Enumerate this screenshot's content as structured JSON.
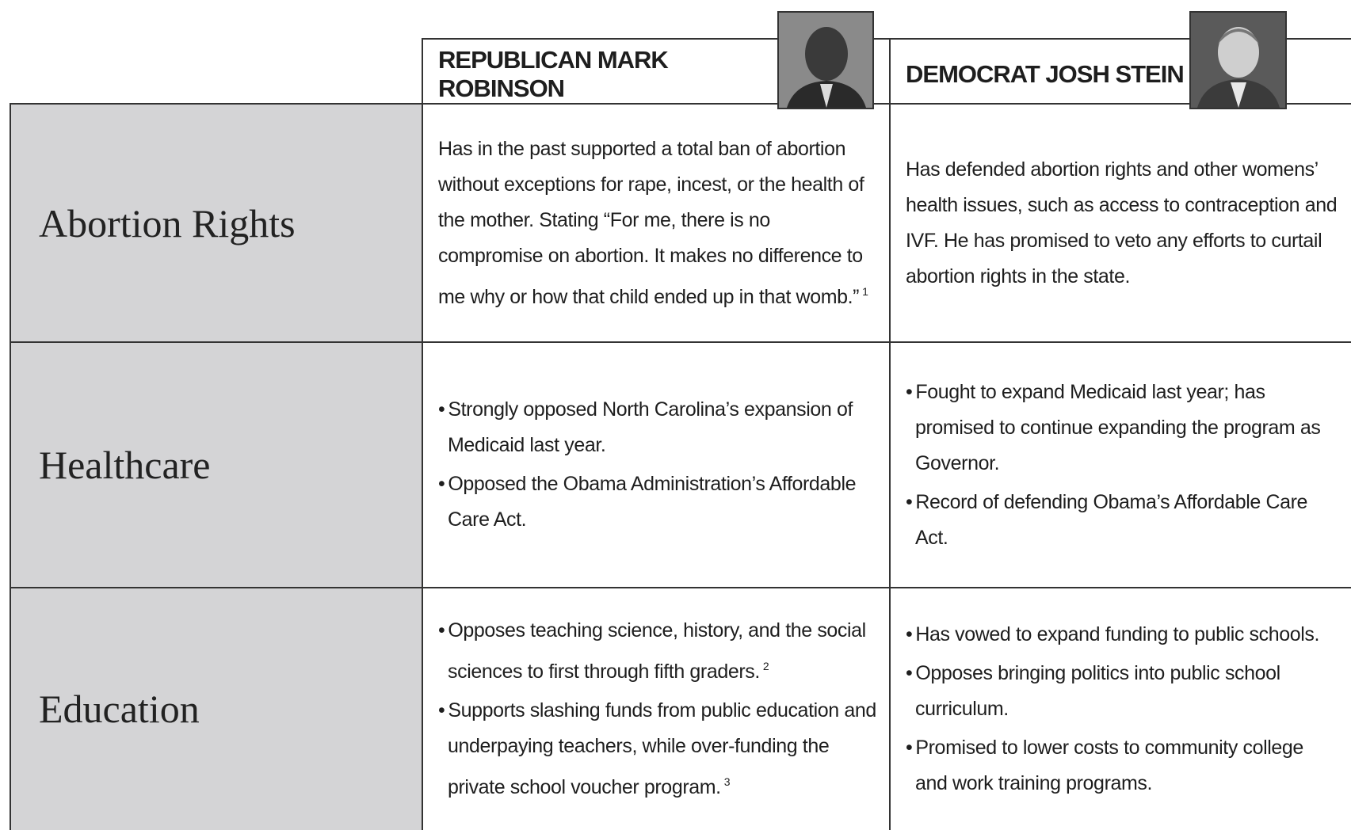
{
  "table": {
    "headers": [
      "REPUBLICAN MARK ROBINSON",
      "DEMOCRAT JOSH STEIN"
    ],
    "rows": [
      {
        "label": "Abortion Rights",
        "cells": [
          {
            "text": "Has in the past supported a total ban of abortion without exceptions for rape, incest, or the health of the mother. Stating “For me, there is no compromise on abortion. It makes no difference to me why or how that child ended up in that womb.”",
            "note": "1"
          },
          {
            "text": "Has defended abortion rights and other womens’ health issues, such as access to contraception and IVF. He has promised to veto any efforts to curtail abortion rights in the state."
          }
        ]
      },
      {
        "label": "Healthcare",
        "cells": [
          {
            "bullets": [
              {
                "text": "Strongly opposed North Carolina’s expansion of Medicaid last year."
              },
              {
                "text": "Opposed the Obama Administration’s Affordable Care Act."
              }
            ]
          },
          {
            "bullets": [
              {
                "text": "Fought to expand Medicaid last year; has promised to continue expanding the program as Governor."
              },
              {
                "text": "Record of defending Obama’s Affordable Care Act."
              }
            ]
          }
        ]
      },
      {
        "label": "Education",
        "cells": [
          {
            "bullets": [
              {
                "text": "Opposes teaching science, history, and the social sciences to first through fifth graders.",
                "note": "2"
              },
              {
                "text": "Supports slashing funds from public education and underpaying teachers, while over-funding the private school voucher program.",
                "note": "3"
              }
            ]
          },
          {
            "bullets": [
              {
                "text": "Has vowed to expand funding to public schools."
              },
              {
                "text": "Opposes bringing politics into public school curriculum."
              },
              {
                "text": "Promised to lower costs to community college and work training programs."
              }
            ]
          }
        ]
      }
    ]
  }
}
